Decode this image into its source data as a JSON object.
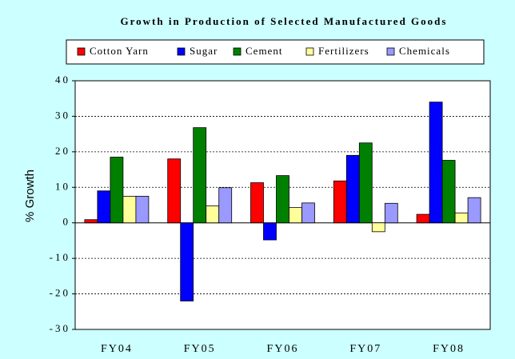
{
  "chart_data": {
    "type": "bar",
    "title": "Growth in Production of Selected Manufactured Goods",
    "y_label": "% Growth",
    "categories": [
      "FY04",
      "FY05",
      "FY06",
      "FY07",
      "FY08"
    ],
    "series": [
      {
        "name": "Cotton Yarn",
        "color": "#ff0000",
        "values": [
          0.9,
          18,
          11.3,
          11.8,
          2.4
        ]
      },
      {
        "name": "Sugar",
        "color": "#0000ff",
        "values": [
          9,
          -22,
          -4.8,
          19,
          34
        ]
      },
      {
        "name": "Cement",
        "color": "#008000",
        "values": [
          18.5,
          26.8,
          13.3,
          22.5,
          17.6
        ]
      },
      {
        "name": "Fertilizers",
        "color": "#ffff99",
        "values": [
          7.5,
          4.8,
          4.3,
          -2.5,
          2.8
        ]
      },
      {
        "name": "Chemicals",
        "color": "#9999ff",
        "values": [
          7.5,
          9.9,
          5.6,
          5.5,
          7.1
        ]
      }
    ],
    "ylim": [
      -30,
      40
    ],
    "yticks": [
      -30,
      -20,
      -10,
      0,
      10,
      20,
      30,
      40
    ],
    "grid": true,
    "legend": "top"
  }
}
